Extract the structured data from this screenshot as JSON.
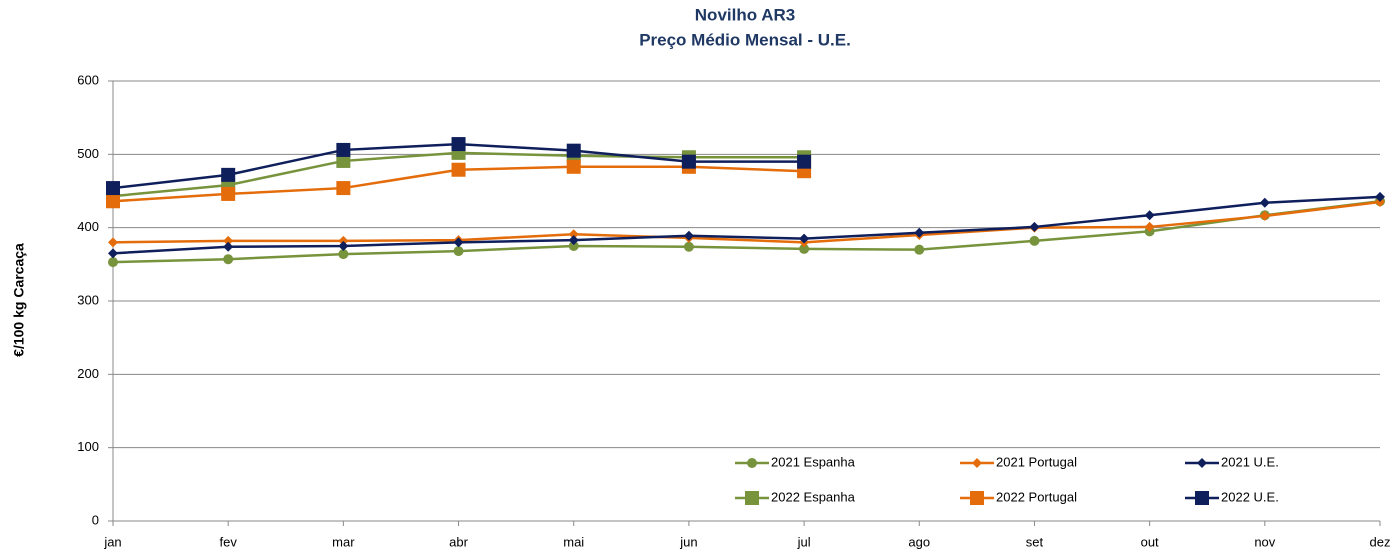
{
  "chart_data": {
    "type": "line",
    "title": "Novilho AR3",
    "subtitle": "Preço Médio Mensal - U.E.",
    "y_label": "€/100 kg  Carcaça",
    "categories": [
      "jan",
      "fev",
      "mar",
      "abr",
      "mai",
      "jun",
      "jul",
      "ago",
      "set",
      "out",
      "nov",
      "dez"
    ],
    "series": [
      {
        "name": "2021 Espanha",
        "color": "#77933c",
        "marker": "circle",
        "values": [
          353,
          357,
          364,
          368,
          375,
          374,
          371,
          370,
          382,
          395,
          417,
          436
        ]
      },
      {
        "name": "2021 Portugal",
        "color": "#e46c0a",
        "marker": "diamond",
        "values": [
          380,
          382,
          382,
          383,
          391,
          386,
          380,
          390,
          400,
          401,
          416,
          435
        ]
      },
      {
        "name": "2021 U.E.",
        "color": "#0f1f5c",
        "marker": "diamond",
        "values": [
          365,
          374,
          375,
          380,
          383,
          389,
          385,
          393,
          401,
          417,
          434,
          442
        ]
      },
      {
        "name": "2022 Espanha",
        "color": "#77933c",
        "marker": "square",
        "values": [
          443,
          458,
          491,
          502,
          498,
          496,
          496,
          null,
          null,
          null,
          null,
          null
        ]
      },
      {
        "name": "2022 Portugal",
        "color": "#e46c0a",
        "marker": "square",
        "values": [
          436,
          446,
          454,
          479,
          483,
          483,
          477,
          null,
          null,
          null,
          null,
          null
        ]
      },
      {
        "name": "2022 U.E.",
        "color": "#0f1f5c",
        "marker": "square",
        "values": [
          454,
          472,
          506,
          514,
          505,
          490,
          490,
          null,
          null,
          null,
          null,
          null
        ]
      }
    ],
    "ylim": [
      0,
      600
    ],
    "yticks": [
      0,
      100,
      200,
      300,
      400,
      500,
      600
    ],
    "grid": true
  }
}
